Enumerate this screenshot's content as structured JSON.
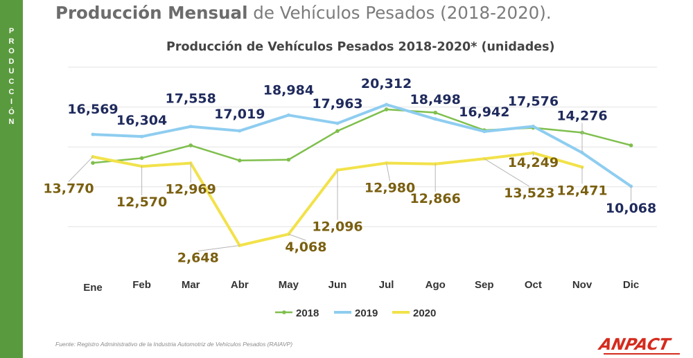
{
  "sidebar": {
    "letters": [
      "P",
      "R",
      "O",
      "D",
      "U",
      "C",
      "C",
      "I",
      "Ó",
      "N"
    ]
  },
  "headline": {
    "bold": "Producción Mensual",
    "rest": " de Vehículos Pesados (2018-2020)."
  },
  "source_note": "Fuente: Registro Administrativo de la Industria Automotriz de Vehículos Pesados (RAIAVP)",
  "logo_text": "ANPACT",
  "colors": {
    "sidebar": "#5a9a3e",
    "2018": "#7fbf4d",
    "2019": "#8ecdf0",
    "2020": "#f2e24a",
    "label_2019": "#1f2a5c",
    "label_2020": "#7a5f10",
    "logo": "#d52b1e"
  },
  "chart_data": {
    "type": "line",
    "title": "Producción de Vehículos Pesados 2018-2020* (unidades)",
    "categories": [
      "Ene",
      "Feb",
      "Mar",
      "Abr",
      "May",
      "Jun",
      "Jul",
      "Ago",
      "Sep",
      "Oct",
      "Nov",
      "Dic"
    ],
    "ylim": [
      0,
      25000
    ],
    "grid": true,
    "legend_position": "bottom",
    "series": [
      {
        "name": "2018",
        "values": [
          13000,
          13600,
          15200,
          13300,
          13400,
          17000,
          19700,
          19300,
          17100,
          17400,
          16800,
          15200
        ],
        "labels": null
      },
      {
        "name": "2019",
        "values": [
          16569,
          16304,
          17558,
          17019,
          18984,
          17963,
          20312,
          18498,
          16942,
          17576,
          14276,
          10068
        ],
        "labels": [
          "16,569",
          "16,304",
          "17,558",
          "17,019",
          "18,984",
          "17,963",
          "20,312",
          "18,498",
          "16,942",
          "17,576",
          "14,276",
          "10,068"
        ]
      },
      {
        "name": "2020",
        "values": [
          13770,
          12570,
          12969,
          2648,
          4068,
          12096,
          12980,
          12866,
          13523,
          14249,
          12471,
          null
        ],
        "labels": [
          "13,770",
          "12,570",
          "12,969",
          "2,648",
          "4,068",
          "12,096",
          "12,980",
          "12,866",
          "13,523",
          "14,249",
          "12,471",
          null
        ]
      }
    ]
  }
}
